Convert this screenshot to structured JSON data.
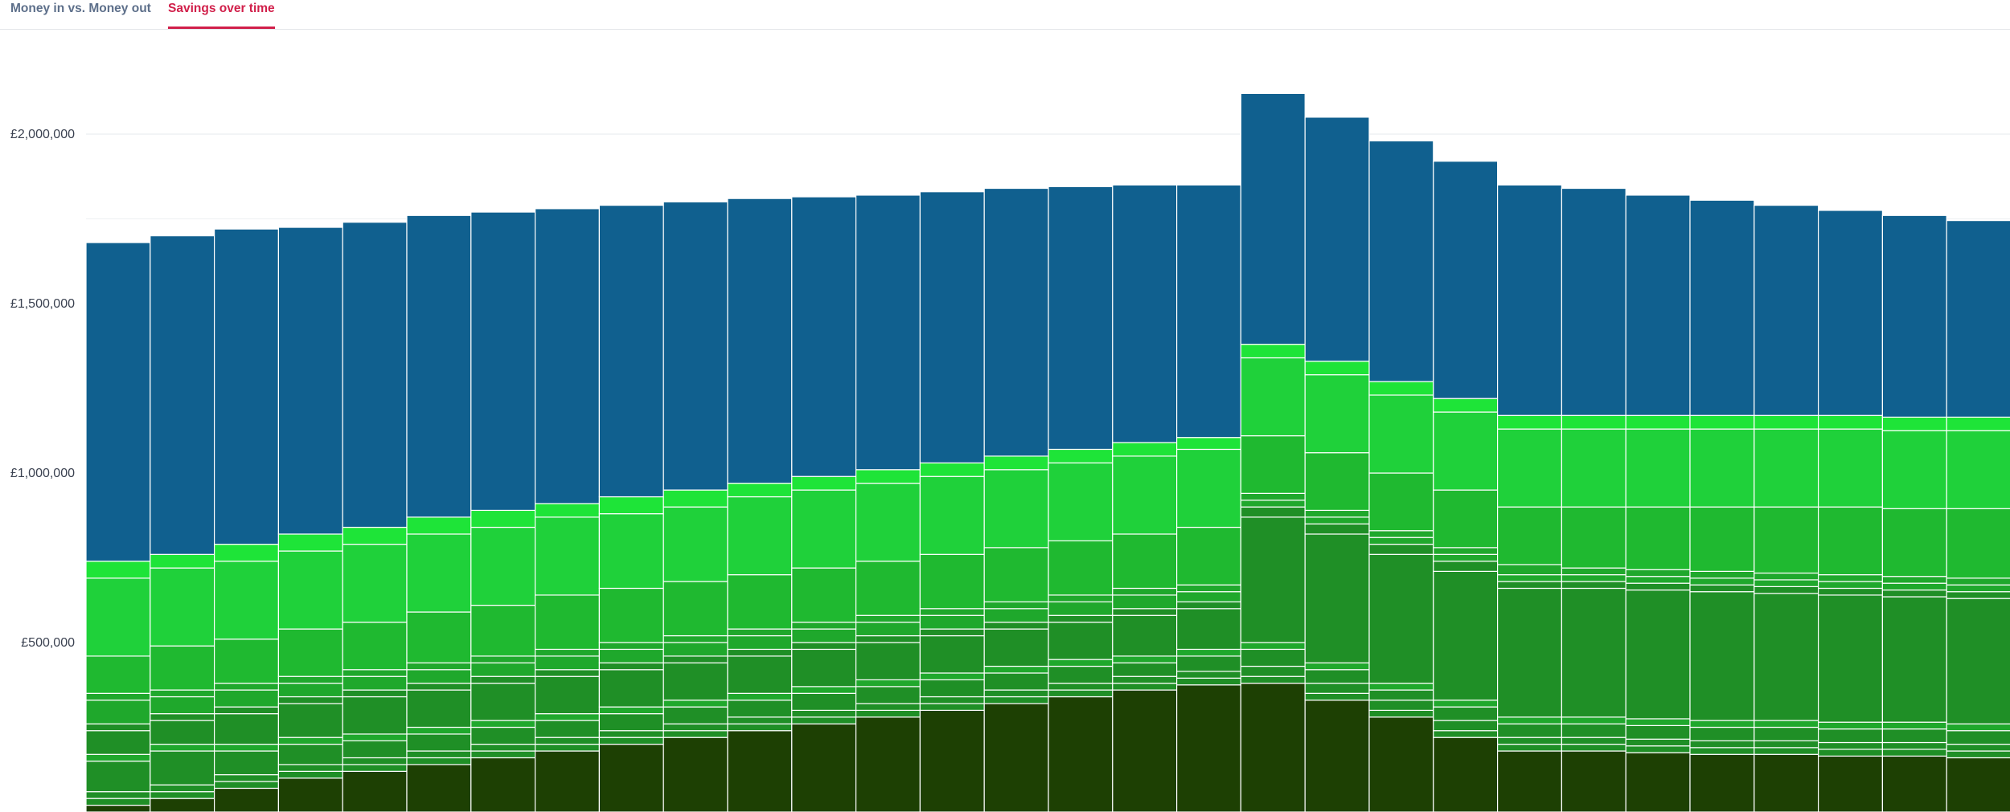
{
  "tabs": [
    {
      "label": "Money in vs. Money out",
      "active": false
    },
    {
      "label": "Savings over time",
      "active": true
    }
  ],
  "colors": {
    "tab_active": "#d11f4a",
    "tab_inactive": "#5d6f8a",
    "top_segment": "#10608f",
    "segment_stroke": "#ffffff",
    "greens": [
      "#1d4003",
      "#1f8f26",
      "#1fb930",
      "#1fd13a",
      "#1ee438"
    ]
  },
  "chart_data": {
    "type": "bar",
    "stacked": true,
    "y_ticks": [
      {
        "value": 500000,
        "label": "£500,000"
      },
      {
        "value": 1000000,
        "label": "£1,000,000"
      },
      {
        "value": 1500000,
        "label": "£1,500,000"
      },
      {
        "value": 2000000,
        "label": "£2,000,000"
      }
    ],
    "ylim": [
      0,
      2300000
    ],
    "grid": true,
    "columns": [
      {
        "boundaries": [
          0,
          20000,
          40000,
          60000,
          150000,
          170000,
          240000,
          260000,
          330000,
          350000,
          460000,
          690000,
          740000
        ],
        "total": 1680000
      },
      {
        "boundaries": [
          0,
          40000,
          60000,
          80000,
          180000,
          200000,
          270000,
          290000,
          340000,
          360000,
          490000,
          720000,
          760000
        ],
        "total": 1700000
      },
      {
        "boundaries": [
          0,
          70000,
          90000,
          110000,
          180000,
          200000,
          290000,
          310000,
          360000,
          380000,
          510000,
          740000,
          790000
        ],
        "total": 1720000
      },
      {
        "boundaries": [
          0,
          100000,
          120000,
          140000,
          200000,
          220000,
          320000,
          340000,
          380000,
          400000,
          540000,
          770000,
          820000
        ],
        "total": 1725000
      },
      {
        "boundaries": [
          0,
          120000,
          140000,
          160000,
          210000,
          230000,
          340000,
          360000,
          400000,
          420000,
          560000,
          790000,
          840000
        ],
        "total": 1740000
      },
      {
        "boundaries": [
          0,
          140000,
          160000,
          180000,
          230000,
          250000,
          360000,
          380000,
          420000,
          440000,
          590000,
          820000,
          870000
        ],
        "total": 1760000
      },
      {
        "boundaries": [
          0,
          160000,
          180000,
          200000,
          250000,
          270000,
          380000,
          400000,
          440000,
          460000,
          610000,
          840000,
          890000
        ],
        "total": 1770000
      },
      {
        "boundaries": [
          0,
          180000,
          200000,
          220000,
          270000,
          290000,
          400000,
          420000,
          460000,
          480000,
          640000,
          870000,
          910000
        ],
        "total": 1780000
      },
      {
        "boundaries": [
          0,
          200000,
          220000,
          240000,
          290000,
          310000,
          420000,
          440000,
          480000,
          500000,
          660000,
          880000,
          930000
        ],
        "total": 1790000
      },
      {
        "boundaries": [
          0,
          220000,
          240000,
          260000,
          310000,
          330000,
          440000,
          460000,
          500000,
          520000,
          680000,
          900000,
          950000
        ],
        "total": 1800000
      },
      {
        "boundaries": [
          0,
          240000,
          260000,
          280000,
          330000,
          350000,
          460000,
          480000,
          520000,
          540000,
          700000,
          930000,
          970000
        ],
        "total": 1810000
      },
      {
        "boundaries": [
          0,
          260000,
          280000,
          300000,
          350000,
          370000,
          480000,
          500000,
          540000,
          560000,
          720000,
          950000,
          990000
        ],
        "total": 1815000
      },
      {
        "boundaries": [
          0,
          280000,
          300000,
          320000,
          370000,
          390000,
          500000,
          520000,
          560000,
          580000,
          740000,
          970000,
          1010000
        ],
        "total": 1820000
      },
      {
        "boundaries": [
          0,
          300000,
          320000,
          340000,
          390000,
          410000,
          520000,
          540000,
          580000,
          600000,
          760000,
          990000,
          1030000
        ],
        "total": 1830000
      },
      {
        "boundaries": [
          0,
          320000,
          340000,
          360000,
          410000,
          430000,
          540000,
          560000,
          600000,
          620000,
          780000,
          1010000,
          1050000
        ],
        "total": 1840000
      },
      {
        "boundaries": [
          0,
          340000,
          360000,
          380000,
          430000,
          450000,
          560000,
          580000,
          620000,
          640000,
          800000,
          1030000,
          1070000
        ],
        "total": 1845000
      },
      {
        "boundaries": [
          0,
          360000,
          380000,
          400000,
          440000,
          460000,
          580000,
          600000,
          640000,
          660000,
          820000,
          1050000,
          1090000
        ],
        "total": 1850000
      },
      {
        "boundaries": [
          0,
          375000,
          395000,
          415000,
          460000,
          480000,
          600000,
          620000,
          650000,
          670000,
          840000,
          1070000,
          1105000
        ],
        "total": 1850000
      },
      {
        "boundaries": [
          0,
          380000,
          400000,
          430000,
          480000,
          500000,
          870000,
          900000,
          920000,
          940000,
          1110000,
          1340000,
          1380000
        ],
        "total": 2120000
      },
      {
        "boundaries": [
          0,
          330000,
          350000,
          380000,
          420000,
          440000,
          820000,
          850000,
          870000,
          890000,
          1060000,
          1290000,
          1330000
        ],
        "total": 2050000
      },
      {
        "boundaries": [
          0,
          280000,
          300000,
          330000,
          360000,
          380000,
          760000,
          790000,
          810000,
          830000,
          1000000,
          1230000,
          1270000
        ],
        "total": 1980000
      },
      {
        "boundaries": [
          0,
          220000,
          240000,
          270000,
          310000,
          330000,
          710000,
          740000,
          760000,
          780000,
          950000,
          1180000,
          1220000
        ],
        "total": 1920000
      },
      {
        "boundaries": [
          0,
          180000,
          200000,
          220000,
          260000,
          280000,
          660000,
          680000,
          700000,
          730000,
          900000,
          1130000,
          1170000
        ],
        "total": 1850000
      },
      {
        "boundaries": [
          0,
          180000,
          200000,
          220000,
          260000,
          280000,
          660000,
          680000,
          700000,
          720000,
          900000,
          1130000,
          1170000
        ],
        "total": 1840000
      },
      {
        "boundaries": [
          0,
          175000,
          195000,
          215000,
          255000,
          275000,
          655000,
          675000,
          695000,
          715000,
          900000,
          1130000,
          1170000
        ],
        "total": 1820000
      },
      {
        "boundaries": [
          0,
          170000,
          190000,
          210000,
          250000,
          270000,
          650000,
          670000,
          690000,
          710000,
          900000,
          1130000,
          1170000
        ],
        "total": 1805000
      },
      {
        "boundaries": [
          0,
          170000,
          190000,
          210000,
          250000,
          270000,
          645000,
          665000,
          685000,
          705000,
          900000,
          1130000,
          1170000
        ],
        "total": 1790000
      },
      {
        "boundaries": [
          0,
          165000,
          185000,
          205000,
          245000,
          265000,
          640000,
          660000,
          680000,
          700000,
          900000,
          1130000,
          1170000
        ],
        "total": 1775000
      },
      {
        "boundaries": [
          0,
          165000,
          185000,
          205000,
          245000,
          265000,
          635000,
          655000,
          675000,
          695000,
          895000,
          1125000,
          1165000
        ],
        "total": 1760000
      },
      {
        "boundaries": [
          0,
          160000,
          180000,
          200000,
          240000,
          260000,
          630000,
          650000,
          670000,
          690000,
          895000,
          1125000,
          1165000
        ],
        "total": 1745000
      }
    ],
    "segment_colors": [
      "#1d4003",
      "#1f8f26",
      "#1f8f26",
      "#1f8f26",
      "#1fa82c",
      "#1f8f26",
      "#1f8f26",
      "#1fa82c",
      "#1fa82c",
      "#1fb930",
      "#1fd13a",
      "#1ee438",
      "#10608f"
    ]
  }
}
